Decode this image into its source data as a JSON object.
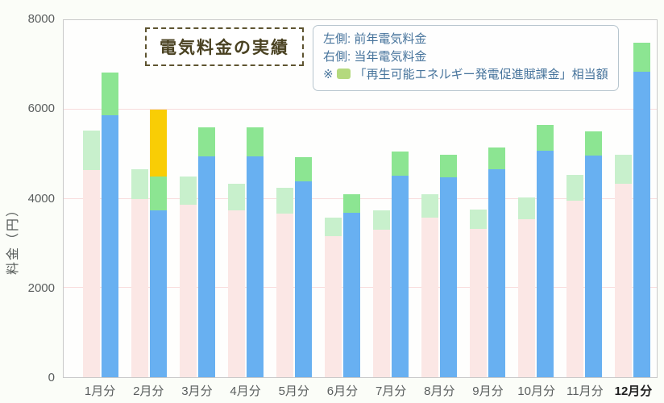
{
  "chart_data": {
    "type": "bar",
    "title": "電気料金の実績",
    "ylabel": "料金（円）",
    "ylim": [
      0,
      8000
    ],
    "yticks": [
      0,
      2000,
      4000,
      6000,
      8000
    ],
    "grid": "horizontal",
    "legend_position": "top",
    "categories": [
      "1月分",
      "2月分",
      "3月分",
      "4月分",
      "5月分",
      "6月分",
      "7月分",
      "8月分",
      "9月分",
      "10月分",
      "11月分",
      "12月分"
    ],
    "emphasized_category": "12月分",
    "legend": {
      "left_label": "左側: 前年電気料金",
      "right_label": "右側: 当年電気料金",
      "note_prefix": "※",
      "levy_label": "「再生可能エネルギー発電促進賦課金」相当額"
    },
    "series": [
      {
        "name": "前年電気料金",
        "position": "left",
        "segments": [
          {
            "key": "base",
            "label": "電気料金",
            "color": "#fbe7e5",
            "values": [
              4650,
              3990,
              3870,
              3740,
              3670,
              3160,
              3300,
              3580,
              3320,
              3540,
              3960,
              4330
            ]
          },
          {
            "key": "levy",
            "label": "再生可能エネルギー発電促進賦課金相当額",
            "color": "#c8f0cc",
            "values": [
              870,
              670,
              620,
              590,
              580,
              420,
              430,
              520,
              440,
              480,
              570,
              650
            ]
          }
        ],
        "totals": [
          5520,
          4660,
          4490,
          4330,
          4250,
          3580,
          3730,
          4100,
          3760,
          4020,
          4530,
          4980
        ]
      },
      {
        "name": "当年電気料金",
        "position": "right",
        "segments": [
          {
            "key": "base",
            "label": "電気料金",
            "color": "#68b0f1",
            "values": [
              5870,
              3730,
              4950,
              4950,
              4390,
              3690,
              4520,
              4480,
              4660,
              5080,
              4960,
              6850
            ]
          },
          {
            "key": "levy",
            "label": "再生可能エネルギー発電促進賦課金相当額",
            "color": "#8ce592",
            "values": [
              960,
              760,
              650,
              640,
              540,
              410,
              540,
              500,
              490,
              570,
              540,
              650
            ]
          },
          {
            "key": "highlight",
            "label": "highlight",
            "color": "#f9cd05",
            "values": [
              0,
              1500,
              0,
              0,
              0,
              0,
              0,
              0,
              0,
              0,
              0,
              0
            ]
          }
        ],
        "totals": [
          6830,
          5990,
          5600,
          5590,
          4930,
          4100,
          5060,
          4980,
          5150,
          5650,
          5500,
          7500
        ]
      }
    ],
    "colors": {
      "gridline": "#f8dcdc",
      "plot_border": "#c9c9c9",
      "legend_swatch": "#b4d97e",
      "legend_text": "#47749c",
      "title_text": "#4a4222",
      "axis_text": "#5a5e5e",
      "emphasized_text": "#1f1f1f"
    }
  }
}
